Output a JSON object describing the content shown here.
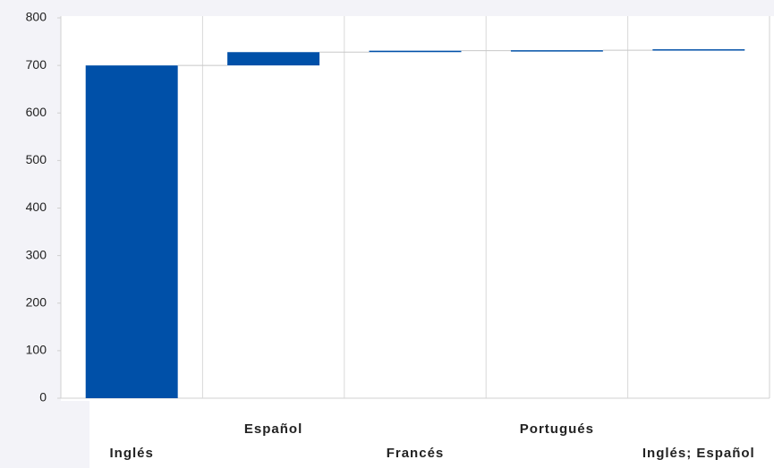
{
  "chart_data": {
    "type": "waterfall",
    "categories": [
      "Inglés",
      "Español",
      "Francés",
      "Portugués",
      "Inglés; Español"
    ],
    "values": [
      700,
      28,
      3,
      1,
      2
    ],
    "color": "#0050a8",
    "ylim": [
      0,
      800
    ],
    "yticks": [
      0,
      100,
      200,
      300,
      400,
      500,
      600,
      700,
      800
    ]
  }
}
